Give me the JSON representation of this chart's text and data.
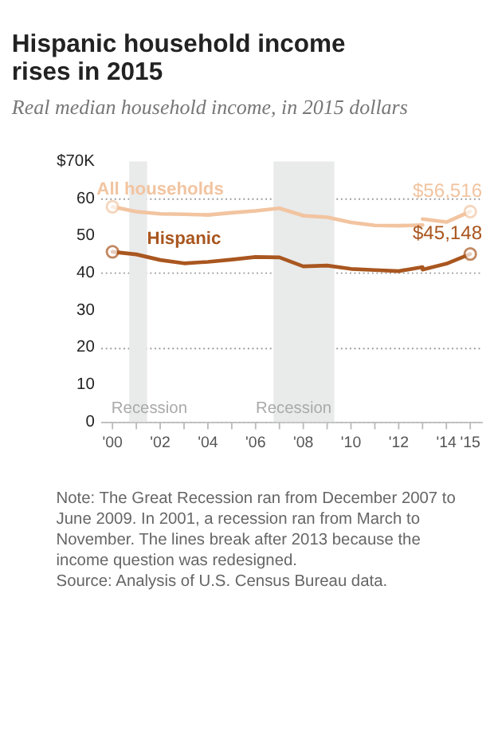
{
  "chart_data": {
    "type": "line",
    "title": "Hispanic household income rises in 2015",
    "subtitle": "Real median household income, in 2015 dollars",
    "series": [
      {
        "name": "All households",
        "color": "#f2c4a0",
        "x": [
          2000,
          2001,
          2002,
          2003,
          2004,
          2005,
          2006,
          2007,
          2008,
          2009,
          2010,
          2011,
          2012,
          2013
        ],
        "values": [
          57.8,
          56.5,
          55.9,
          55.8,
          55.6,
          56.2,
          56.7,
          57.4,
          55.4,
          55.0,
          53.6,
          52.8,
          52.7,
          52.9
        ]
      },
      {
        "name": "Hispanic",
        "color": "#a9561f",
        "x": [
          2000,
          2001,
          2002,
          2003,
          2004,
          2005,
          2006,
          2007,
          2008,
          2009,
          2010,
          2011,
          2012,
          2013
        ],
        "values": [
          45.7,
          45.0,
          43.5,
          42.6,
          43.0,
          43.6,
          44.3,
          44.2,
          41.8,
          42.0,
          41.1,
          40.8,
          40.5,
          41.6
        ]
      },
      {
        "color": "#f2c4a0",
        "x": [
          2013,
          2014,
          2015
        ],
        "values": [
          54.5,
          53.7,
          56.5
        ]
      },
      {
        "color": "#a9561f",
        "x": [
          2013,
          2014,
          2015
        ],
        "values": [
          40.9,
          42.5,
          45.1
        ]
      }
    ],
    "xlim": [
      1999.5,
      2015.5
    ],
    "xticks": [
      {
        "value": 2000,
        "label": "'00"
      },
      {
        "value": 2001,
        "label": null
      },
      {
        "value": 2002,
        "label": "'02"
      },
      {
        "value": 2003,
        "label": null
      },
      {
        "value": 2004,
        "label": "'04"
      },
      {
        "value": 2005,
        "label": null
      },
      {
        "value": 2006,
        "label": "'06"
      },
      {
        "value": 2007,
        "label": null
      },
      {
        "value": 2008,
        "label": "'08"
      },
      {
        "value": 2009,
        "label": null
      },
      {
        "value": 2010,
        "label": "'10"
      },
      {
        "value": 2011,
        "label": null
      },
      {
        "value": 2012,
        "label": "'12"
      },
      {
        "value": 2013,
        "label": null
      },
      {
        "value": 2014,
        "label": "'14"
      },
      {
        "value": 2015,
        "label": "'15"
      }
    ],
    "ylim": [
      0,
      70
    ],
    "yticks": [
      0,
      10,
      20,
      30,
      40,
      50,
      60,
      {
        "value": 70,
        "label": "$70K"
      }
    ],
    "grid": "y",
    "bands": [
      {
        "axis": "x",
        "from": 2000.7,
        "to": 2001.45,
        "label": "Recession",
        "color": "#e9eaea"
      },
      {
        "axis": "x",
        "from": 2006.75,
        "to": 2009.3,
        "label": "Recession",
        "color": "#e9eaea"
      }
    ],
    "annotations": [
      {
        "text": "$56,516",
        "x": 2015,
        "y": 56.5
      },
      {
        "text": "$45,148",
        "x": 2015,
        "y": 45.1
      },
      "Note: The Great Recession ran from December 2007 to June 2009. In 2001, a recession ran from March to November. The lines break after 2013 because the income question was redesigned.",
      "Source: Analysis of U.S. Census Bureau data."
    ]
  }
}
